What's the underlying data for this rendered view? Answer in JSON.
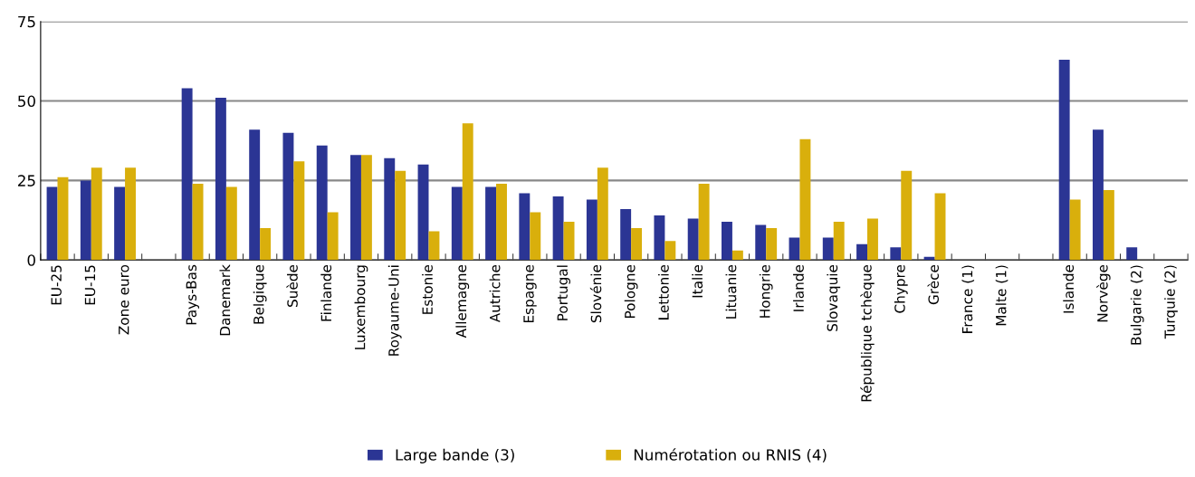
{
  "chart_data": {
    "type": "bar",
    "categories": [
      "EU-25",
      "EU-15",
      "Zone euro",
      null,
      "Pays-Bas",
      "Danemark",
      "Belgique",
      "Suède",
      "Finlande",
      "Luxembourg",
      "Royaume-Uni",
      "Estonie",
      "Allemagne",
      "Autriche",
      "Espagne",
      "Portugal",
      "Slovénie",
      "Pologne",
      "Lettonie",
      "Italie",
      "Lituanie",
      "Hongrie",
      "Irlande",
      "Slovaquie",
      "République tchèque",
      "Chypre",
      "Grèce",
      "France (1)",
      "Malte (1)",
      null,
      "Islande",
      "Norvège",
      "Bulgarie (2)",
      "Turquie (2)"
    ],
    "series": [
      {
        "name": "Large bande (3)",
        "color": "#2b3594",
        "values": [
          23,
          25,
          23,
          null,
          54,
          51,
          41,
          40,
          36,
          33,
          32,
          30,
          23,
          23,
          21,
          20,
          19,
          16,
          14,
          13,
          12,
          11,
          7,
          7,
          5,
          4,
          1,
          null,
          null,
          null,
          63,
          41,
          4,
          null
        ]
      },
      {
        "name": "Numérotation ou RNIS (4)",
        "color": "#d9af0c",
        "values": [
          26,
          29,
          29,
          null,
          24,
          23,
          10,
          31,
          15,
          33,
          28,
          9,
          43,
          24,
          15,
          12,
          29,
          10,
          6,
          24,
          3,
          10,
          38,
          12,
          13,
          28,
          21,
          null,
          null,
          null,
          19,
          22,
          null,
          null
        ]
      }
    ],
    "ylim": [
      0,
      75
    ],
    "yticks": [
      0,
      25,
      50,
      75
    ],
    "grid": "y",
    "legend": "bottom"
  }
}
